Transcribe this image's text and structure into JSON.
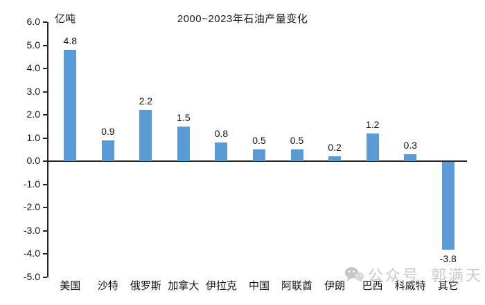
{
  "title": "2000~2023年石油产量变化",
  "unit_label": "亿吨",
  "chart_data": {
    "type": "bar",
    "categories": [
      "美国",
      "沙特",
      "俄罗斯",
      "加拿大",
      "伊拉克",
      "中国",
      "阿联酋",
      "伊朗",
      "巴西",
      "科威特",
      "其它"
    ],
    "values": [
      4.8,
      0.9,
      2.2,
      1.5,
      0.8,
      0.5,
      0.5,
      0.2,
      1.2,
      0.3,
      -3.8
    ],
    "data_labels": [
      "4.8",
      "0.9",
      "2.2",
      "1.5",
      "0.8",
      "0.5",
      "0.5",
      "0.2",
      "1.2",
      "0.3",
      "-3.8"
    ],
    "title": "2000~2023年石油产量变化",
    "ylabel": "亿吨",
    "xlabel": "",
    "ylim": [
      -5.0,
      6.0
    ],
    "y_ticks": [
      "6.0",
      "5.0",
      "4.0",
      "3.0",
      "2.0",
      "1.0",
      "0.0",
      "-1.0",
      "-2.0",
      "-3.0",
      "-4.0",
      "-5.0"
    ],
    "bar_color": "#5B9BD5",
    "axis_color": "#262626",
    "grid": false,
    "legend": "none",
    "data_label_position": "outside-end"
  },
  "watermark": {
    "icon": "wechat-icon",
    "text1": "公众号",
    "text2": "郭满天",
    "color": "#c5c5c5"
  }
}
